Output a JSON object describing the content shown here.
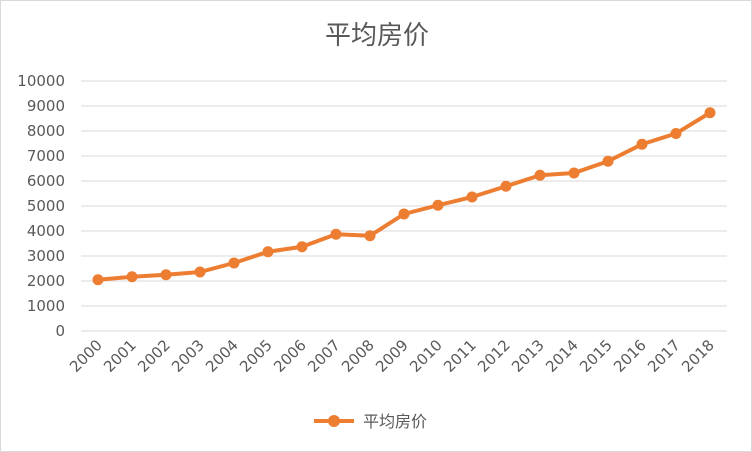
{
  "chart_data": {
    "type": "line",
    "title": "平均房价",
    "categories": [
      "2000",
      "2001",
      "2002",
      "2003",
      "2004",
      "2005",
      "2006",
      "2007",
      "2008",
      "2009",
      "2010",
      "2011",
      "2012",
      "2013",
      "2014",
      "2015",
      "2016",
      "2017",
      "2018"
    ],
    "series": [
      {
        "name": "平均房价",
        "color": "#ed7d31",
        "values": [
          2050,
          2170,
          2250,
          2360,
          2720,
          3170,
          3370,
          3870,
          3810,
          4680,
          5030,
          5360,
          5790,
          6230,
          6320,
          6790,
          7470,
          7900,
          8730
        ]
      }
    ],
    "y_ticks": [
      "0",
      "1000",
      "2000",
      "3000",
      "4000",
      "5000",
      "6000",
      "7000",
      "8000",
      "9000",
      "10000"
    ],
    "ylim": [
      0,
      10000
    ],
    "grid": true,
    "legend_position": "bottom"
  }
}
